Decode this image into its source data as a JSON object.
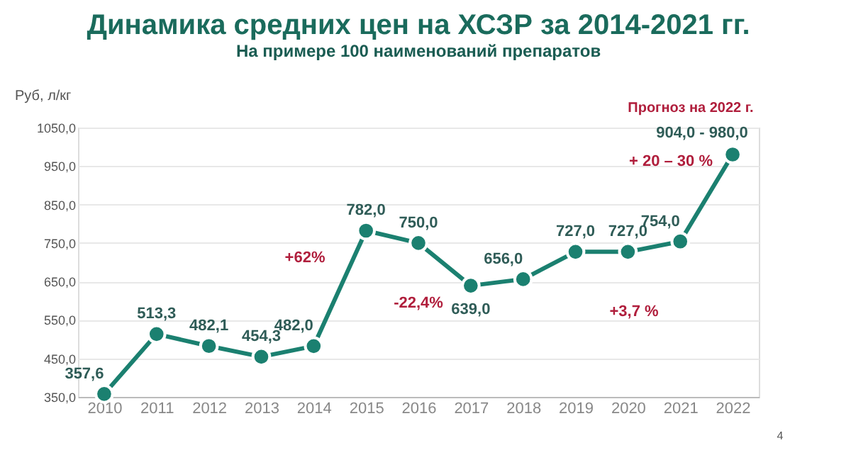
{
  "chart_data": {
    "type": "line",
    "title": "Динамика средних цен на ХСЗР  за 2014-2021 гг.",
    "subtitle": "На примере 100 наименований препаратов",
    "ylabel": "Руб, л/кг",
    "categories": [
      "2010",
      "2011",
      "2012",
      "2013",
      "2014",
      "2015",
      "2016",
      "2017",
      "2018",
      "2019",
      "2020",
      "2021",
      "2022"
    ],
    "series": [
      {
        "color": "#1b8070",
        "values": [
          357.6,
          513.3,
          482.1,
          454.3,
          482.0,
          782.0,
          750.0,
          639.0,
          656.0,
          727.0,
          727.0,
          754.0,
          980.0
        ],
        "value_labels": [
          "357,6",
          "513,3",
          "482,1",
          "454,3",
          "482,0",
          "782,0",
          "750,0",
          "639,0",
          "656,0",
          "727,0",
          "727,0",
          "754,0",
          null
        ]
      }
    ],
    "ylim": [
      350,
      1050
    ],
    "yticks": [
      {
        "value": 350,
        "label": "350,0"
      },
      {
        "value": 450,
        "label": "450,0"
      },
      {
        "value": 550,
        "label": "550,0"
      },
      {
        "value": 650,
        "label": "650,0"
      },
      {
        "value": 750,
        "label": "750,0"
      },
      {
        "value": 850,
        "label": "850,0"
      },
      {
        "value": 950,
        "label": "950,0"
      },
      {
        "value": 1050,
        "label": "1050,0"
      }
    ],
    "grid": "y",
    "marker": "circle",
    "line_style": "solid",
    "annotations": [
      "+62%",
      "-22,4%",
      "+3,7 %",
      "+ 20 – 30 %",
      "904,0 - 980,0",
      "Прогноз на 2022 г.",
      "4"
    ]
  }
}
